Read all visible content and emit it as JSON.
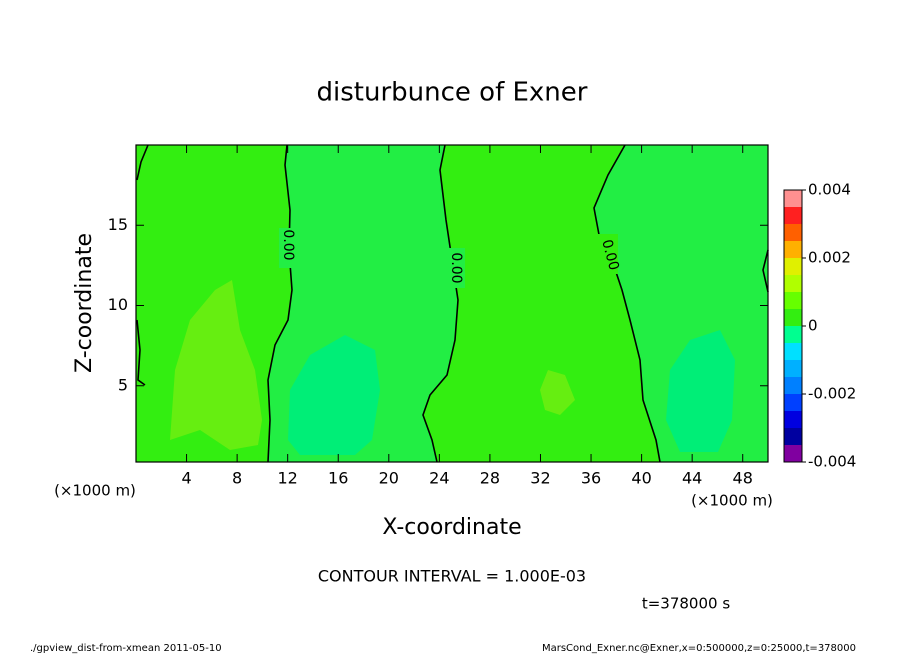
{
  "chart_data": {
    "type": "contour",
    "title": "disturbunce of Exner",
    "x_label": "X-coordinate",
    "y_label": "Z-coordinate",
    "x_unit": "(×1000 m)",
    "y_unit": "(×1000 m)",
    "xlim": [
      0,
      50
    ],
    "ylim": [
      0.25,
      20
    ],
    "xticks": [
      4,
      8,
      12,
      16,
      20,
      24,
      28,
      32,
      36,
      40,
      44,
      48
    ],
    "yticks": [
      5,
      10,
      15
    ],
    "contour_labels": [
      "0.00",
      "0.00",
      "0.00"
    ],
    "colorbar": {
      "levels": [
        -0.004,
        -0.0035,
        -0.003,
        -0.0025,
        -0.002,
        -0.0015,
        -0.001,
        -0.0005,
        0,
        0.0005,
        0.001,
        0.0015,
        0.002,
        0.0025,
        0.003,
        0.0035,
        0.004
      ],
      "colors": [
        "#8000a0",
        "#0000a0",
        "#0000e0",
        "#0040ff",
        "#0080ff",
        "#00b0ff",
        "#00e0ff",
        "#00ff90",
        "#33ee11",
        "#66ff00",
        "#b0ff00",
        "#e0f000",
        "#ffb000",
        "#ff6000",
        "#ff2020",
        "#ff9090"
      ],
      "ticks": [
        -0.004,
        -0.002,
        0,
        0.002,
        0.004
      ]
    },
    "contour_interval": "CONTOUR INTERVAL = 1.000E-03",
    "time_label": "t=378000 s",
    "footer_left": "./gpview_dist-from-xmean  2011-05-10",
    "footer_right": "MarsCond_Exner.nc@Exner,x=0:500000,z=0:25000,t=378000"
  }
}
